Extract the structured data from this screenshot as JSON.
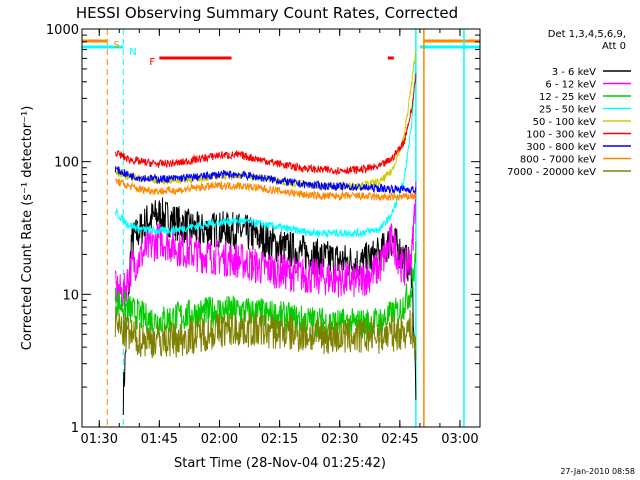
{
  "chart_data": {
    "type": "line",
    "title": "HESSI Observing Summary Count Rates, Corrected",
    "xlabel": "Start Time (28-Nov-04 01:25:42)",
    "ylabel": "Corrected Count Rate (s⁻¹ detector⁻¹)",
    "yscale": "log",
    "ylim": [
      1,
      1000
    ],
    "xlim": [
      "01:25:42",
      "03:05:00"
    ],
    "x_ticks": [
      "01:30",
      "01:45",
      "02:00",
      "02:15",
      "02:30",
      "02:45",
      "03:00"
    ],
    "y_ticks": [
      "1",
      "10",
      "100",
      "1000"
    ],
    "grid": false,
    "legend_position": "right",
    "legend_header": [
      "Det 1,3,4,5,6,9,",
      "Att 0"
    ],
    "series": [
      {
        "name": "3 - 6 keV",
        "color": "#000000",
        "x": [
          "01:36",
          "01:38",
          "01:40",
          "01:42",
          "01:45",
          "01:50",
          "01:55",
          "02:00",
          "02:05",
          "02:10",
          "02:15",
          "02:20",
          "02:25",
          "02:30",
          "02:35",
          "02:40",
          "02:43",
          "02:46",
          "02:48",
          "02:49"
        ],
        "y": [
          1.7,
          25,
          30,
          36,
          40,
          34,
          30,
          31,
          30,
          27,
          23,
          21,
          19,
          18,
          17,
          20,
          26,
          19,
          15,
          2
        ]
      },
      {
        "name": "6 - 12 keV",
        "color": "#ff00ff",
        "x": [
          "01:34",
          "01:36",
          "01:38",
          "01:40",
          "01:42",
          "01:45",
          "01:50",
          "01:55",
          "02:00",
          "02:05",
          "02:10",
          "02:15",
          "02:20",
          "02:25",
          "02:30",
          "02:35",
          "02:40",
          "02:43",
          "02:46",
          "02:48",
          "02:49"
        ],
        "y": [
          11,
          10,
          16,
          19,
          22,
          26,
          22,
          20,
          19,
          18,
          16,
          15,
          14,
          13.5,
          13,
          12.5,
          16,
          26,
          15,
          20,
          60
        ]
      },
      {
        "name": "12 - 25 keV",
        "color": "#00cc00",
        "x": [
          "01:34",
          "01:38",
          "01:42",
          "01:45",
          "01:50",
          "01:55",
          "02:00",
          "02:05",
          "02:10",
          "02:15",
          "02:20",
          "02:25",
          "02:30",
          "02:35",
          "02:40",
          "02:45",
          "02:48",
          "02:49"
        ],
        "y": [
          9,
          7.5,
          6.5,
          6.3,
          6.8,
          7.2,
          7.5,
          7.5,
          7.2,
          6.8,
          6.4,
          6.2,
          6.0,
          6.0,
          6.2,
          7.5,
          11,
          20
        ]
      },
      {
        "name": "25 - 50 keV",
        "color": "#00ffff",
        "x": [
          "01:34",
          "01:37",
          "01:40",
          "01:45",
          "01:50",
          "01:55",
          "02:00",
          "02:05",
          "02:10",
          "02:15",
          "02:20",
          "02:25",
          "02:30",
          "02:35",
          "02:40",
          "02:43",
          "02:46",
          "02:48",
          "02:49"
        ],
        "y": [
          42,
          34,
          31,
          30,
          31,
          33,
          35,
          36,
          34,
          32,
          30,
          29,
          29,
          29,
          31,
          40,
          70,
          200,
          600
        ]
      },
      {
        "name": "50 - 100 keV",
        "color": "#cccc00",
        "x": [
          "01:34",
          "01:37",
          "01:40",
          "01:45",
          "01:50",
          "01:55",
          "02:00",
          "02:05",
          "02:10",
          "02:15",
          "02:20",
          "02:25",
          "02:30",
          "02:35",
          "02:40",
          "02:43",
          "02:46",
          "02:48",
          "02:49"
        ],
        "y": [
          82,
          78,
          75,
          72,
          73,
          75,
          78,
          79,
          76,
          72,
          68,
          66,
          65,
          66,
          70,
          85,
          150,
          400,
          700
        ]
      },
      {
        "name": "100 - 300 keV",
        "color": "#ff0000",
        "x": [
          "01:34",
          "01:37",
          "01:40",
          "01:45",
          "01:50",
          "01:55",
          "02:00",
          "02:05",
          "02:10",
          "02:15",
          "02:20",
          "02:25",
          "02:30",
          "02:35",
          "02:40",
          "02:43",
          "02:46",
          "02:48",
          "02:49"
        ],
        "y": [
          118,
          105,
          100,
          96,
          98,
          105,
          112,
          112,
          104,
          96,
          90,
          87,
          86,
          87,
          92,
          105,
          140,
          250,
          450
        ]
      },
      {
        "name": "300 - 800 keV",
        "color": "#0000ff",
        "x": [
          "01:34",
          "01:37",
          "01:40",
          "01:45",
          "01:50",
          "01:55",
          "02:00",
          "02:05",
          "02:10",
          "02:15",
          "02:20",
          "02:25",
          "02:30",
          "02:35",
          "02:40",
          "02:45",
          "02:48",
          "02:49"
        ],
        "y": [
          88,
          80,
          76,
          74,
          75,
          77,
          80,
          80,
          76,
          72,
          68,
          66,
          65,
          64,
          63,
          62,
          62,
          60
        ]
      },
      {
        "name": "800 - 7000 keV",
        "color": "#ff8800",
        "x": [
          "01:34",
          "01:37",
          "01:40",
          "01:45",
          "01:50",
          "01:55",
          "02:00",
          "02:05",
          "02:10",
          "02:15",
          "02:20",
          "02:25",
          "02:30",
          "02:35",
          "02:40",
          "02:45",
          "02:48",
          "02:49"
        ],
        "y": [
          72,
          66,
          62,
          60,
          61,
          64,
          66,
          66,
          63,
          60,
          57,
          55,
          55,
          55,
          54,
          54,
          55,
          55
        ]
      },
      {
        "name": "7000 - 20000 keV",
        "color": "#808000",
        "x": [
          "01:34",
          "01:37",
          "01:40",
          "01:45",
          "01:50",
          "01:55",
          "02:00",
          "02:05",
          "02:10",
          "02:15",
          "02:20",
          "02:25",
          "02:30",
          "02:35",
          "02:40",
          "02:45",
          "02:48",
          "02:49"
        ],
        "y": [
          6.0,
          5.0,
          4.6,
          4.5,
          4.6,
          5.0,
          5.4,
          5.5,
          5.4,
          5.2,
          5.0,
          4.9,
          4.8,
          4.8,
          4.9,
          5.2,
          5.6,
          4.0
        ]
      }
    ],
    "annotations": [
      {
        "label": "S",
        "color": "#ff8800"
      },
      {
        "label": "N",
        "color": "#00ffff"
      },
      {
        "label": "F",
        "color": "#ff0000"
      }
    ],
    "flag_bars": {
      "orange": [
        [
          "01:25:42",
          "01:32"
        ],
        [
          "02:51",
          "03:05"
        ]
      ],
      "cyan": [
        [
          "01:25:42",
          "01:36"
        ],
        [
          "02:50",
          "03:05"
        ]
      ],
      "red": [
        [
          "01:45",
          "02:03"
        ],
        [
          "02:42",
          "02:43:30"
        ]
      ]
    },
    "markers": {
      "orange_dashed": [
        "01:32",
        "03:01"
      ],
      "cyan_dashed": [
        "01:36"
      ],
      "cyan_solid": [
        "02:49",
        "03:01"
      ],
      "orange_solid": [
        "02:51"
      ]
    },
    "footer_date": "27-Jan-2010 08:58"
  }
}
